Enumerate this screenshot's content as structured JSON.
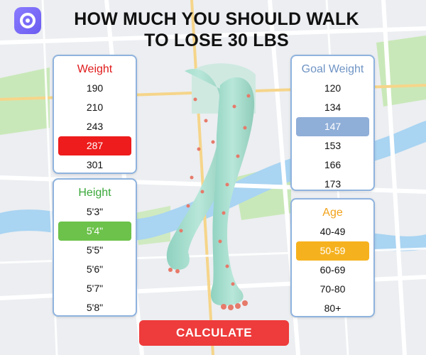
{
  "headline": [
    "HOW MUCH YOU SHOULD WALK",
    "TO LOSE 30 LBS"
  ],
  "app_icon": "target-ring-icon",
  "weight": {
    "title": "Weight",
    "options": [
      "190",
      "210",
      "243",
      "287",
      "301"
    ],
    "selected": "287",
    "color": "#ee1c1c"
  },
  "height": {
    "title": "Height",
    "options": [
      "5'3\"",
      "5'4\"",
      "5'5\"",
      "5'6\"",
      "5'7\"",
      "5'8\""
    ],
    "selected": "5'4\"",
    "color": "#6cc24a"
  },
  "goal_weight": {
    "title": "Goal Weight",
    "options": [
      "120",
      "134",
      "147",
      "153",
      "166",
      "173"
    ],
    "selected": "147",
    "color": "#8faed8"
  },
  "age": {
    "title": "Age",
    "options": [
      "40-49",
      "50-59",
      "60-69",
      "70-80",
      "80+"
    ],
    "selected": "50-59",
    "color": "#f6b21e"
  },
  "calculate_label": "CALCULATE",
  "calculate_color": "#ee3b3b"
}
